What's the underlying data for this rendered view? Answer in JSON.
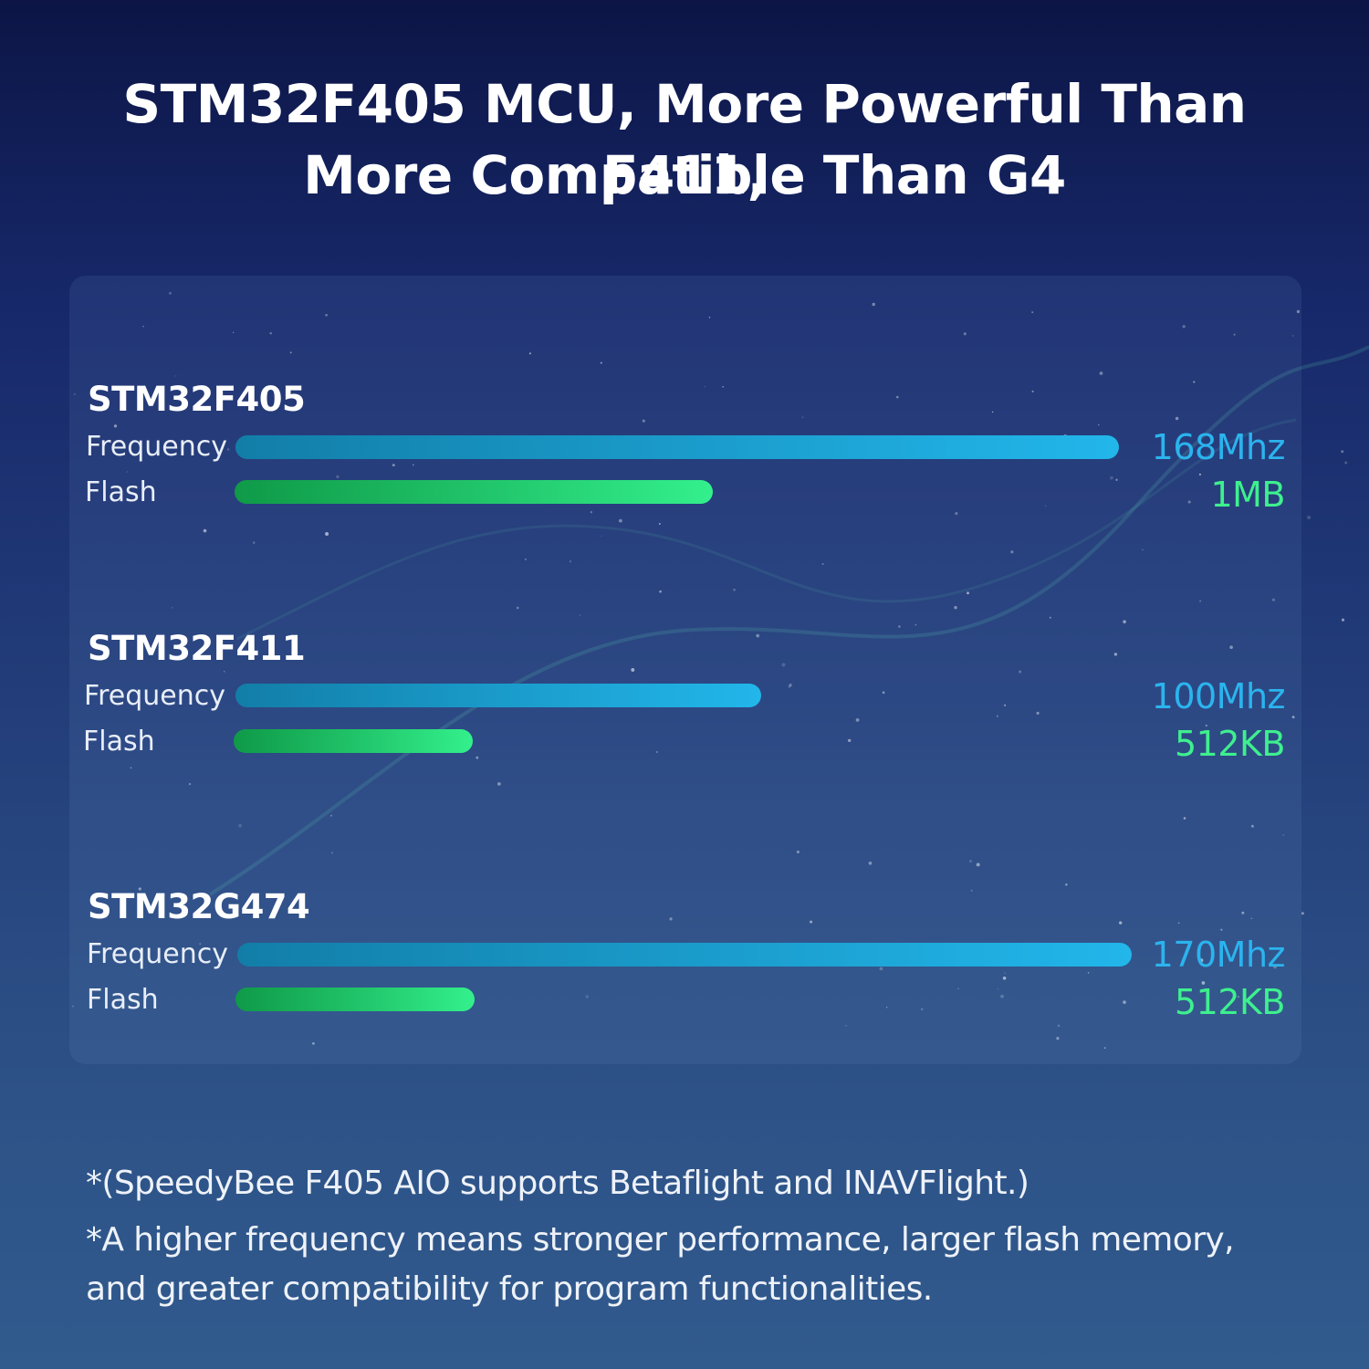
{
  "headline": {
    "line1": "STM32F405 MCU, More Powerful Than F411,",
    "line2": "More Compatible Than G4"
  },
  "colors": {
    "frequency_bar": "#1a9bca",
    "frequency_text": "#2bb4ee",
    "flash_bar": "#22c76c",
    "flash_text": "#3ef08e"
  },
  "chart_data": {
    "type": "bar",
    "orientation": "horizontal",
    "groups": [
      {
        "name": "STM32F405",
        "metrics": [
          {
            "label": "Frequency",
            "value_text": "168Mhz"
          },
          {
            "label": "Flash",
            "value_text": "1MB"
          }
        ]
      },
      {
        "name": "STM32F411",
        "metrics": [
          {
            "label": "Frequency",
            "value_text": "100Mhz"
          },
          {
            "label": "Flash",
            "value_text": "512KB"
          }
        ]
      },
      {
        "name": "STM32G474",
        "metrics": [
          {
            "label": "Frequency",
            "value_text": "170Mhz"
          },
          {
            "label": "Flash",
            "value_text": "512KB"
          }
        ]
      }
    ],
    "series": [
      {
        "name": "Frequency",
        "unit": "Mhz",
        "values": [
          168,
          100,
          170
        ]
      },
      {
        "name": "Flash",
        "unit": "KB",
        "values": [
          1024,
          512,
          512
        ]
      }
    ]
  },
  "notes": {
    "line1": "*(SpeedyBee F405 AIO supports Betaflight and INAVFlight.)",
    "line2": "*A higher frequency means stronger performance, larger flash memory,",
    "line3": "and greater compatibility for program functionalities."
  }
}
